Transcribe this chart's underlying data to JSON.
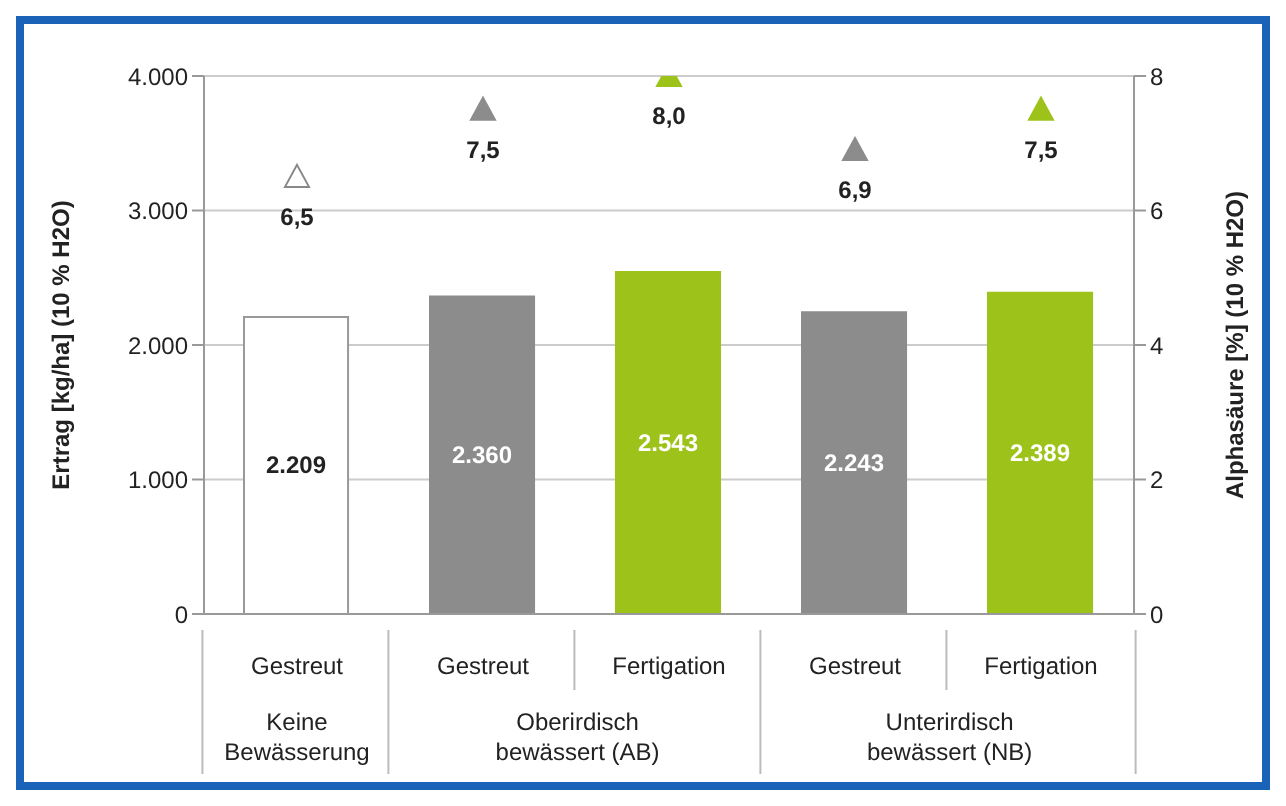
{
  "chart_data": {
    "type": "bar",
    "categories": [
      "Gestreut",
      "Gestreut",
      "Fertigation",
      "Gestreut",
      "Fertigation"
    ],
    "ylabel": "Ertrag [kg/ha] (10 % H2O)",
    "y2label": "Alphasäure [%] (10 % H2O)",
    "ylim": [
      0,
      4000
    ],
    "yticks": [
      0,
      {
        "value": 1000,
        "label": "1.000"
      },
      {
        "value": 2000,
        "label": "2.000"
      },
      {
        "value": 3000,
        "label": "3.000"
      },
      {
        "value": 4000,
        "label": "4.000"
      }
    ],
    "y2lim": [
      0,
      8
    ],
    "y2ticks": [
      0,
      2,
      4,
      6,
      8
    ],
    "grid": "y",
    "annotations": [
      "Keine Bewässerung",
      "Oberirdisch bewässert (AB)",
      "Unterirdisch bewässert (NB)"
    ],
    "series": [
      {
        "colors": [
          "#ffffff",
          "#8c8c8c",
          "#9dc31a",
          "#8c8c8c",
          "#9dc31a"
        ],
        "values": [
          2209,
          2360,
          2543,
          2243,
          2389
        ],
        "value_labels": [
          "2.209",
          "2.360",
          "2.543",
          "2.243",
          "2.389"
        ]
      },
      {
        "type": "scatter",
        "axis": "y2",
        "marker": "triangle",
        "colors": [
          "#ffffff",
          "#8c8c8c",
          "#9dc31a",
          "#8c8c8c",
          "#9dc31a"
        ],
        "values": [
          6.5,
          7.5,
          8.0,
          6.9,
          7.5
        ],
        "value_labels": [
          "6,5",
          "7,5",
          "8,0",
          "6,9",
          "7,5"
        ]
      }
    ]
  }
}
